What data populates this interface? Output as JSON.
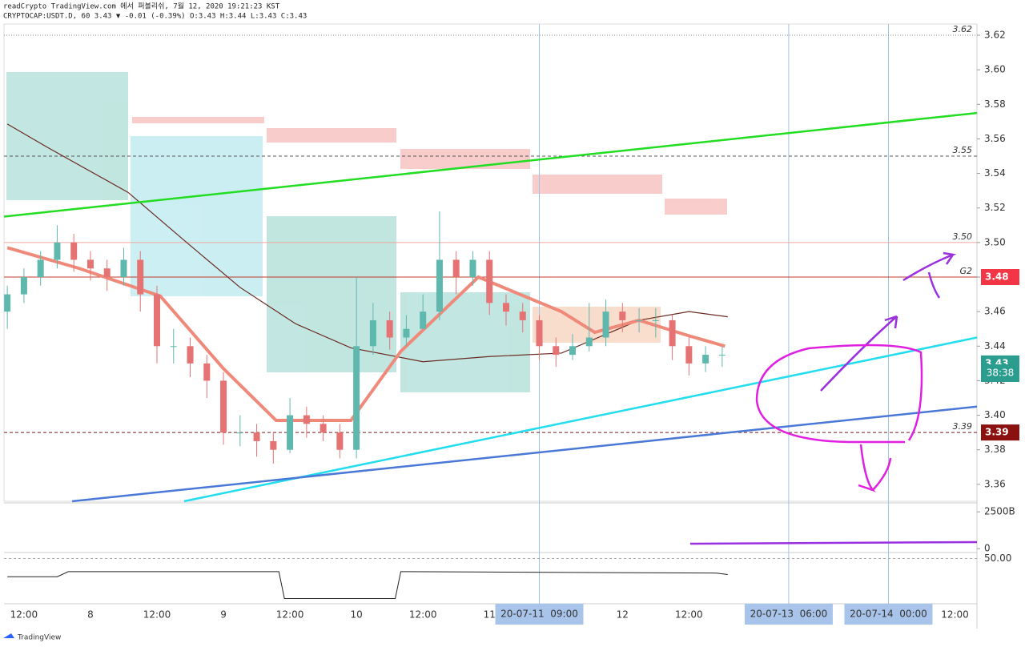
{
  "chart_data": {
    "type": "candlestick",
    "title": "readCrypto TradingView.com 에서 퍼블리쉬, 7월 12, 2020 19:21:23 KST",
    "subtitle": "CRYPTOCAP:USDT.D, 60 3.43 ▼ -0.01 (-0.39%) O:3.43 H:3.44 L:3.43 C:3.43",
    "footer": "TradingView",
    "xlim": [
      -15.6,
      159.97
    ],
    "ylim": [
      3.3502,
      3.6265
    ],
    "yticks": [
      3.36,
      3.38,
      {
        "value": 3.4,
        "label": "3.40"
      },
      3.42,
      3.44,
      3.46,
      3.48,
      {
        "value": 3.5,
        "label": "3.50"
      },
      3.52,
      3.54,
      3.56,
      3.58,
      {
        "value": 3.6,
        "label": "3.60"
      },
      3.62
    ],
    "xticks": [
      {
        "value": -12,
        "label": "12:00"
      },
      {
        "value": 0,
        "label": "8"
      },
      {
        "value": 12,
        "label": "12:00"
      },
      {
        "value": 24,
        "label": "9"
      },
      {
        "value": 36,
        "label": "12:00"
      },
      {
        "value": 48,
        "label": "10"
      },
      {
        "value": 60,
        "label": "12:00"
      },
      {
        "value": 72,
        "label": "11"
      },
      {
        "value": 96,
        "label": "12"
      },
      {
        "value": 108,
        "label": "12:00"
      },
      {
        "value": 156,
        "label": "12:00"
      }
    ],
    "date_markers": [
      {
        "value": 81,
        "label": "20-07-11  09:00"
      },
      {
        "value": 126,
        "label": "20-07-13  06:00"
      },
      {
        "value": 144,
        "label": "20-07-14  00:00"
      }
    ],
    "candles": {
      "x": [
        -15,
        -12,
        -9,
        -6,
        -3,
        0,
        3,
        6,
        9,
        12,
        15,
        18,
        21,
        24,
        27,
        30,
        33,
        36,
        39,
        42,
        45,
        48,
        51,
        54,
        57,
        60,
        63,
        66,
        69,
        72,
        75,
        78,
        81,
        84,
        87,
        90,
        93,
        96,
        99,
        102,
        105,
        108,
        111,
        114
      ],
      "open": [
        3.46,
        3.47,
        3.48,
        3.49,
        3.5,
        3.49,
        3.485,
        3.48,
        3.49,
        3.47,
        3.44,
        3.44,
        3.43,
        3.42,
        3.39,
        3.39,
        3.385,
        3.38,
        3.4,
        3.395,
        3.39,
        3.38,
        3.44,
        3.455,
        3.445,
        3.45,
        3.46,
        3.49,
        3.48,
        3.49,
        3.465,
        3.46,
        3.455,
        3.44,
        3.435,
        3.44,
        3.445,
        3.46,
        3.455,
        3.455,
        3.455,
        3.44,
        3.43,
        3.435
      ],
      "high": [
        3.475,
        3.485,
        3.495,
        3.51,
        3.505,
        3.495,
        3.49,
        3.497,
        3.495,
        3.475,
        3.45,
        3.445,
        3.435,
        3.425,
        3.4,
        3.395,
        3.39,
        3.41,
        3.405,
        3.4,
        3.395,
        3.48,
        3.465,
        3.46,
        3.458,
        3.47,
        3.518,
        3.495,
        3.495,
        3.495,
        3.47,
        3.465,
        3.458,
        3.445,
        3.447,
        3.465,
        3.467,
        3.465,
        3.462,
        3.462,
        3.458,
        3.445,
        3.44,
        3.44
      ],
      "low": [
        3.45,
        3.465,
        3.475,
        3.485,
        3.483,
        3.478,
        3.472,
        3.475,
        3.46,
        3.43,
        3.43,
        3.422,
        3.41,
        3.383,
        3.382,
        3.376,
        3.372,
        3.378,
        3.387,
        3.385,
        3.375,
        3.375,
        3.435,
        3.438,
        3.44,
        3.45,
        3.455,
        3.47,
        3.475,
        3.458,
        3.452,
        3.448,
        3.432,
        3.428,
        3.432,
        3.437,
        3.44,
        3.448,
        3.448,
        3.445,
        3.432,
        3.423,
        3.425,
        3.428
      ],
      "close": [
        3.47,
        3.48,
        3.49,
        3.5,
        3.49,
        3.485,
        3.48,
        3.49,
        3.47,
        3.44,
        3.44,
        3.43,
        3.42,
        3.39,
        3.39,
        3.385,
        3.38,
        3.4,
        3.395,
        3.39,
        3.38,
        3.44,
        3.455,
        3.445,
        3.45,
        3.46,
        3.49,
        3.48,
        3.49,
        3.465,
        3.46,
        3.455,
        3.44,
        3.435,
        3.44,
        3.445,
        3.46,
        3.455,
        3.455,
        3.455,
        3.44,
        3.43,
        3.435,
        3.435
      ],
      "up_color": "#5fb8ae",
      "down_color": "#e57373"
    },
    "lines": [
      {
        "color": "#6b2a22",
        "width": 1.2,
        "x": [
          -15,
          -7.7,
          6.8,
          17,
          27,
          37,
          47,
          60,
          72,
          85,
          99,
          108,
          115
        ],
        "values": [
          3.5686,
          3.555,
          3.529,
          3.501,
          3.474,
          3.453,
          3.439,
          3.431,
          3.434,
          3.436,
          3.455,
          3.46,
          3.457
        ]
      },
      {
        "color": "#ef8a7a",
        "width": 4,
        "x": [
          -15,
          -2,
          12.6,
          24,
          33.5,
          47,
          56,
          70,
          85,
          91,
          99,
          108,
          114.5
        ],
        "values": [
          3.497,
          3.485,
          3.469,
          3.427,
          3.397,
          3.397,
          3.437,
          3.48,
          3.46,
          3.448,
          3.455,
          3.446,
          3.44
        ]
      },
      {
        "color": "#22dd22",
        "width": 2.5,
        "x": [
          -15.6,
          159.97
        ],
        "values": [
          3.515,
          3.575
        ]
      },
      {
        "color": "#22ddee",
        "width": 2.5,
        "x": [
          16.9,
          159.97
        ],
        "values": [
          3.3502,
          3.445
        ]
      },
      {
        "color": "#4a78d6",
        "width": 2.5,
        "x": [
          -3.3,
          159.97
        ],
        "values": [
          3.3502,
          3.405
        ]
      }
    ],
    "levels": [
      {
        "value": 3.62,
        "label": "3.62",
        "color": "#888",
        "dash": "1 2"
      },
      {
        "value": 3.55,
        "label": "3.55",
        "color": "#555",
        "dash": "4 3"
      },
      {
        "value": 3.5,
        "label": "3.50",
        "color": "#f0a8a0",
        "dash": ""
      },
      {
        "value": 3.48,
        "label": "G2",
        "color": "#c0392b",
        "dash": ""
      },
      {
        "value": 3.39,
        "label": "3.39",
        "color": "#7a1a1a",
        "dash": "4 3"
      }
    ],
    "price_badges": [
      {
        "value": 3.48,
        "label": "3.48",
        "color": "#f23645"
      },
      {
        "value": 3.43,
        "label": "3.43",
        "color": "#2a9d8f"
      },
      {
        "value": 3.39,
        "label": "3.39",
        "color": "#8b1010"
      }
    ],
    "countdown": "38:38",
    "volume_ylim": [
      -150,
      3000
    ],
    "volume_ticks": [
      {
        "value": 2500,
        "label": "2500B"
      },
      0
    ],
    "osc_ylim": [
      -10,
      55
    ],
    "osc_ticks": [
      {
        "value": 50,
        "label": "50.00"
      }
    ],
    "osc": {
      "color": "#222",
      "x": [
        -15,
        -6,
        -4,
        34,
        35,
        55,
        56,
        113,
        115
      ],
      "values": [
        25,
        25,
        32,
        32,
        -5,
        -5,
        32,
        30,
        28
      ]
    }
  }
}
